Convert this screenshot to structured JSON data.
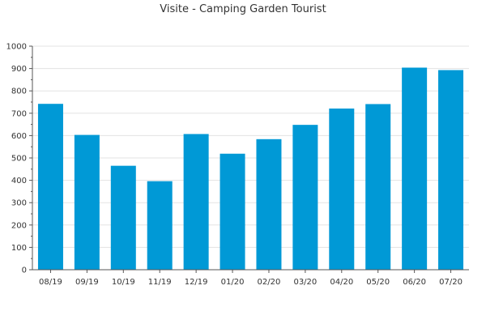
{
  "chart_data": {
    "type": "bar",
    "title": "Visite - Camping Garden Tourist",
    "xlabel": "",
    "ylabel": "",
    "categories": [
      "08/19",
      "09/19",
      "10/19",
      "11/19",
      "12/19",
      "01/20",
      "02/20",
      "03/20",
      "04/20",
      "05/20",
      "06/20",
      "07/20"
    ],
    "values": [
      742,
      603,
      465,
      396,
      607,
      519,
      584,
      648,
      721,
      741,
      904,
      893
    ],
    "ylim": [
      0,
      1000
    ],
    "yticks": [
      0,
      100,
      200,
      300,
      400,
      500,
      600,
      700,
      800,
      900,
      1000
    ],
    "grid": true,
    "legend": "none",
    "colors": {
      "bar": "#0099d6",
      "grid": "#e3e3e3",
      "axis": "#555555",
      "text": "#333333"
    }
  }
}
